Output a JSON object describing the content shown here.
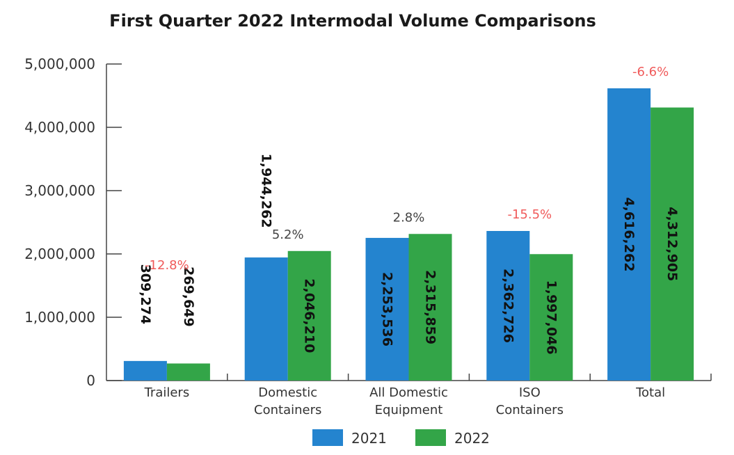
{
  "chart_data": {
    "type": "bar",
    "title": "First Quarter 2022 Intermodal Volume Comparisons",
    "categories": [
      [
        "Trailers"
      ],
      [
        "Domestic",
        "Containers"
      ],
      [
        "All Domestic",
        "Equipment"
      ],
      [
        "ISO",
        "Containers"
      ],
      [
        "Total"
      ]
    ],
    "series": [
      {
        "name": "2021",
        "color": "#2484cf",
        "values": [
          309274,
          1944262,
          2253536,
          2362726,
          4616262
        ],
        "labels": [
          "309,274",
          "1,944,262",
          "2,253,536",
          "2,362,726",
          "4,616,262"
        ]
      },
      {
        "name": "2022",
        "color": "#33a548",
        "values": [
          269649,
          2046210,
          2315859,
          1997046,
          4312905
        ],
        "labels": [
          "269,649",
          "2,046,210",
          "2,315,859",
          "1,997,046",
          "4,312,905"
        ]
      }
    ],
    "changes": [
      {
        "text": "-12.8%",
        "color": "#f05a5a"
      },
      {
        "text": "5.2%",
        "color": "#444444"
      },
      {
        "text": "2.8%",
        "color": "#444444"
      },
      {
        "text": "-15.5%",
        "color": "#f05a5a"
      },
      {
        "text": "-6.6%",
        "color": "#f05a5a"
      }
    ],
    "ylim": [
      0,
      5000000
    ],
    "yticks": [
      0,
      1000000,
      2000000,
      3000000,
      4000000,
      5000000
    ],
    "ytick_labels": [
      "0",
      "1,000,000",
      "2,000,000",
      "3,000,000",
      "4,000,000",
      "5,000,000"
    ],
    "legend_position": "bottom-center",
    "grid": false
  }
}
